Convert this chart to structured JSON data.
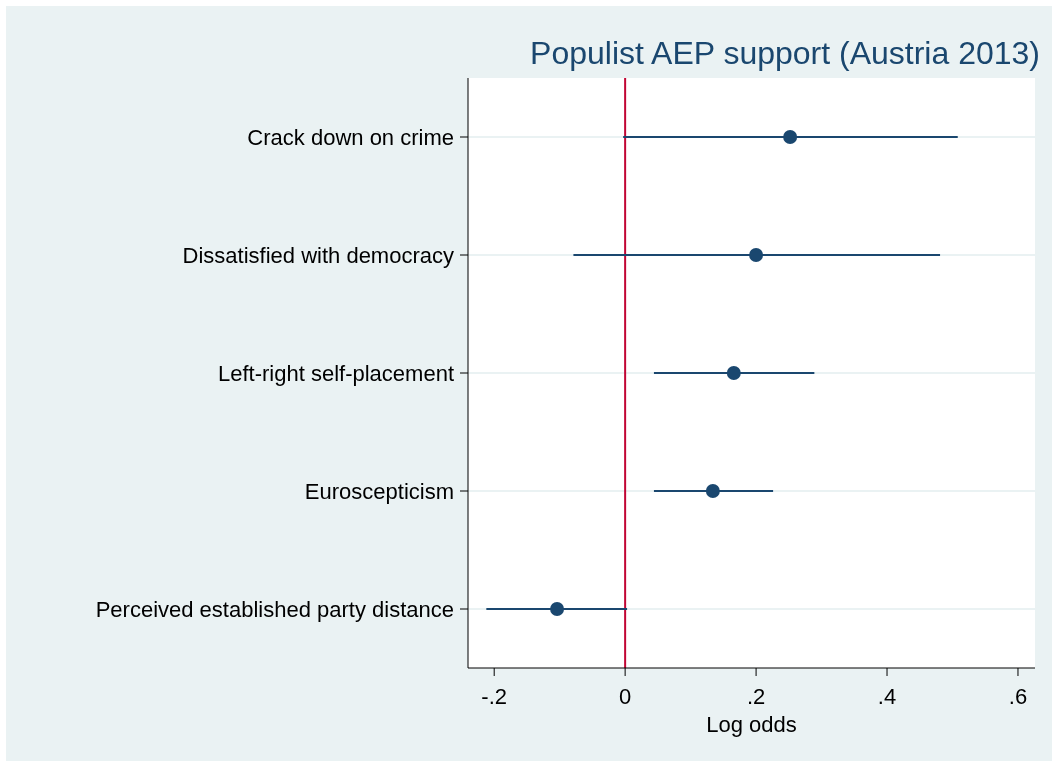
{
  "chart_data": {
    "type": "scatter",
    "orientation": "horizontal",
    "title": "Populist AEP support (Austria 2013)",
    "xlabel": "Log odds",
    "categories": [
      "Crack down on crime",
      "Dissatisfied with democracy",
      "Left-right self-placement",
      "Euroscepticism",
      "Perceived established party distance"
    ],
    "values": [
      0.252,
      0.2,
      0.166,
      0.134,
      -0.104
    ],
    "errors": [
      [
        -0.003,
        0.508
      ],
      [
        -0.079,
        0.481
      ],
      [
        0.044,
        0.289
      ],
      [
        0.044,
        0.226
      ],
      [
        -0.212,
        0.003
      ]
    ],
    "color": "#1a476f",
    "marker": "circle",
    "xlim": [
      -0.24,
      0.626
    ],
    "xticks": [
      {
        "value": -0.2,
        "label": "-.2"
      },
      0,
      {
        "value": 0.2,
        "label": ".2"
      },
      {
        "value": 0.4,
        "label": ".4"
      },
      {
        "value": 0.6,
        "label": ".6"
      }
    ],
    "ref_lines": [
      {
        "axis": "x",
        "value": 0,
        "color": "#c10534"
      }
    ],
    "grid": "y"
  }
}
